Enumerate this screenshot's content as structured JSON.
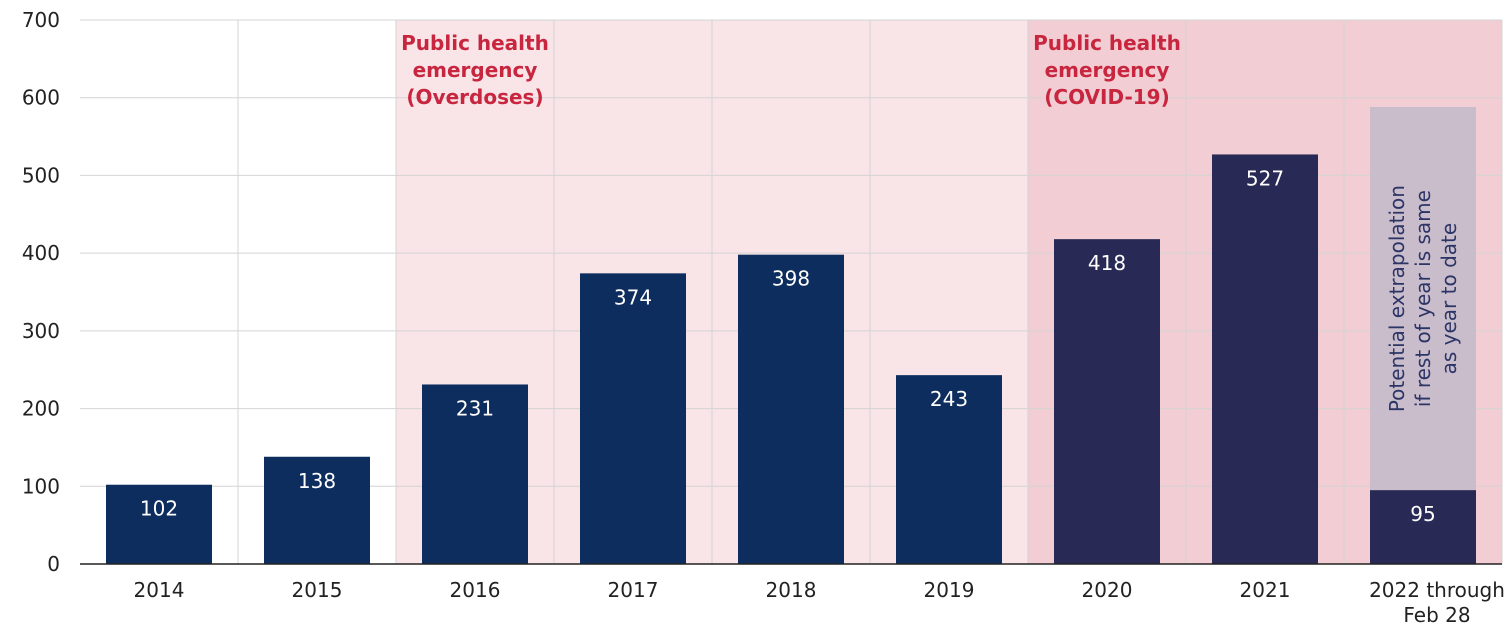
{
  "chart_data": {
    "type": "bar",
    "title": "",
    "xlabel": "",
    "ylabel": "",
    "ylim": [
      0,
      700
    ],
    "yticks": [
      0,
      100,
      200,
      300,
      400,
      500,
      600,
      700
    ],
    "grid": true,
    "categories": [
      "2014",
      "2015",
      "2016",
      "2017",
      "2018",
      "2019",
      "2020",
      "2021",
      "2022 through Feb 28"
    ],
    "values": [
      102,
      138,
      231,
      374,
      398,
      243,
      418,
      527,
      95
    ],
    "value_labels": [
      "102",
      "138",
      "231",
      "374",
      "398",
      "243",
      "418",
      "527",
      "95"
    ],
    "extrapolation": {
      "category": "2022 through Feb 28",
      "value": 588,
      "label_lines": [
        "Potential extrapolation",
        "if rest of year is same",
        "as year to date"
      ]
    },
    "shaded_periods": [
      {
        "label_lines": [
          "Public health",
          "emergency",
          "(Overdoses)"
        ],
        "from": "2016",
        "to": "2022 through Feb 28",
        "color": "#f9e4e7"
      },
      {
        "label_lines": [
          "Public health",
          "emergency",
          "(COVID-19)"
        ],
        "from": "2020",
        "to": "2022 through Feb 28",
        "color": "#f2cdd3"
      }
    ],
    "colors": {
      "bar_early": "#0c2d5e",
      "bar_late": "#282a55",
      "extrapolation_fill": "#c9bccb",
      "grid": "#d4d4d4",
      "region_text": "#c8253f"
    }
  }
}
